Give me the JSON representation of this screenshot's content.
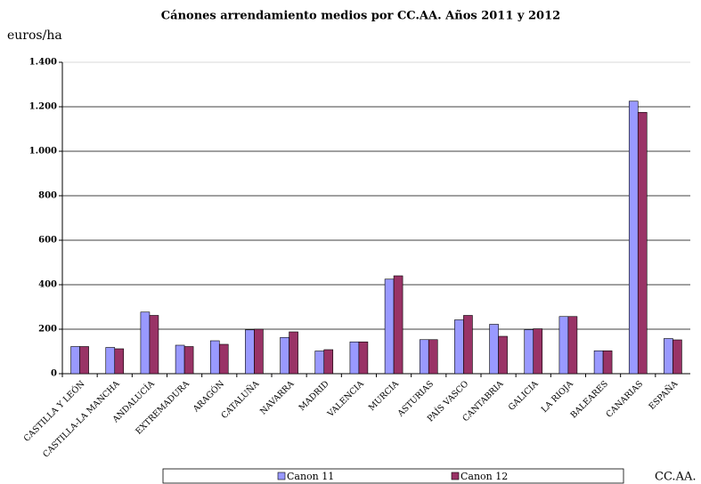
{
  "chart_data": {
    "type": "bar",
    "title": "Cánones arrendamiento medios por CC.AA. Años 2011 y 2012",
    "y_label": "euros/ha",
    "x_label": "CC.AA.",
    "categories": [
      "CASTILLA Y LEÓN",
      "CASTILLA-LA MANCHA",
      "ANDALUCÍA",
      "EXTREMADURA",
      "ARAGÓN",
      "CATALUÑA",
      "NAVARRA",
      "MADRID",
      "VALENCIA",
      "MURCIA",
      "ASTURIAS",
      "PAÍS VASCO",
      "CANTABRIA",
      "GALICIA",
      "LA RIOJA",
      "BALEARES",
      "CANARIAS",
      "ESPAÑA"
    ],
    "series": [
      {
        "name": "Canon 11",
        "color": "#9999ff",
        "values": [
          122,
          118,
          277,
          128,
          148,
          197,
          163,
          102,
          143,
          425,
          153,
          242,
          222,
          198,
          257,
          103,
          1225,
          158
        ]
      },
      {
        "name": "Canon 12",
        "color": "#993366",
        "values": [
          122,
          112,
          262,
          122,
          132,
          200,
          188,
          108,
          143,
          440,
          153,
          262,
          168,
          202,
          257,
          103,
          1175,
          152
        ]
      }
    ],
    "ylim": [
      0,
      1400
    ],
    "yticks": [
      0,
      200,
      400,
      600,
      800,
      {
        "value": 1000,
        "label": "1.000"
      },
      {
        "value": 1200,
        "label": "1.200"
      },
      {
        "value": 1400,
        "label": "1.400"
      }
    ],
    "grid": true,
    "legend": "bottom"
  }
}
